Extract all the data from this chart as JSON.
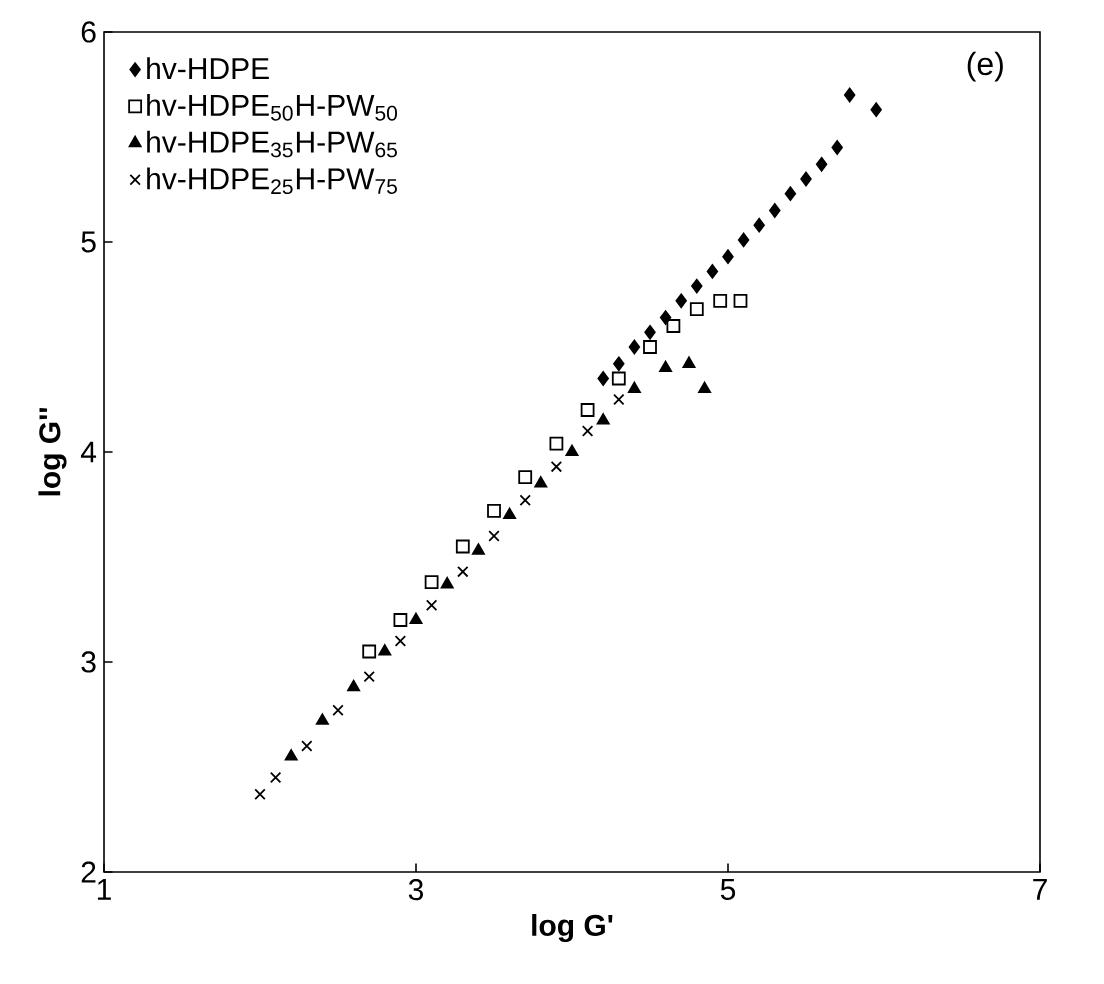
{
  "chart_data": {
    "type": "scatter",
    "xlabel": "log G'",
    "ylabel": "log G''",
    "xlim": [
      1,
      7
    ],
    "ylim": [
      2,
      6
    ],
    "xticks": [
      1,
      3,
      5,
      7
    ],
    "yticks": [
      2,
      3,
      4,
      5,
      6
    ],
    "grid": false,
    "legend": "top left",
    "annotations": [
      "(e)"
    ],
    "series": [
      {
        "name": "hv-HDPE",
        "color": "#000000",
        "marker": "diamond",
        "x": [
          4.2,
          4.3,
          4.4,
          4.5,
          4.6,
          4.7,
          4.8,
          4.9,
          5.0,
          5.1,
          5.2,
          5.3,
          5.4,
          5.5,
          5.6,
          5.7,
          5.78,
          5.95
        ],
        "values": [
          4.35,
          4.42,
          4.5,
          4.57,
          4.64,
          4.72,
          4.79,
          4.86,
          4.93,
          5.01,
          5.08,
          5.15,
          5.23,
          5.3,
          5.37,
          5.45,
          5.7,
          5.63
        ]
      },
      {
        "name": "hv-HDPE$_{50}$H-PW$_{50}$",
        "color": "#000000",
        "marker": "square",
        "x": [
          2.7,
          2.9,
          3.1,
          3.3,
          3.5,
          3.7,
          3.9,
          4.1,
          4.3,
          4.5,
          4.65,
          4.8,
          4.95,
          5.08
        ],
        "values": [
          3.05,
          3.2,
          3.38,
          3.55,
          3.72,
          3.88,
          4.04,
          4.2,
          4.35,
          4.5,
          4.6,
          4.68,
          4.72,
          4.72
        ]
      },
      {
        "name": "hv-HDPE$_{35}$H-PW$_{65}$",
        "color": "#000000",
        "marker": "triangle",
        "x": [
          2.2,
          2.4,
          2.6,
          2.8,
          3.0,
          3.2,
          3.4,
          3.6,
          3.8,
          4.0,
          4.2,
          4.4,
          4.6,
          4.75,
          4.85
        ],
        "values": [
          2.55,
          2.72,
          2.88,
          3.05,
          3.2,
          3.37,
          3.53,
          3.7,
          3.85,
          4.0,
          4.15,
          4.3,
          4.4,
          4.42,
          4.3
        ]
      },
      {
        "name": "hv-HDPE$_{25}$H-PW$_{75}$",
        "color": "#000000",
        "marker": "cross",
        "x": [
          2.0,
          2.1,
          2.3,
          2.5,
          2.7,
          2.9,
          3.1,
          3.3,
          3.5,
          3.7,
          3.9,
          4.1,
          4.3
        ],
        "values": [
          2.37,
          2.45,
          2.6,
          2.77,
          2.93,
          3.1,
          3.27,
          3.43,
          3.6,
          3.77,
          3.93,
          4.1,
          4.25
        ]
      }
    ]
  }
}
